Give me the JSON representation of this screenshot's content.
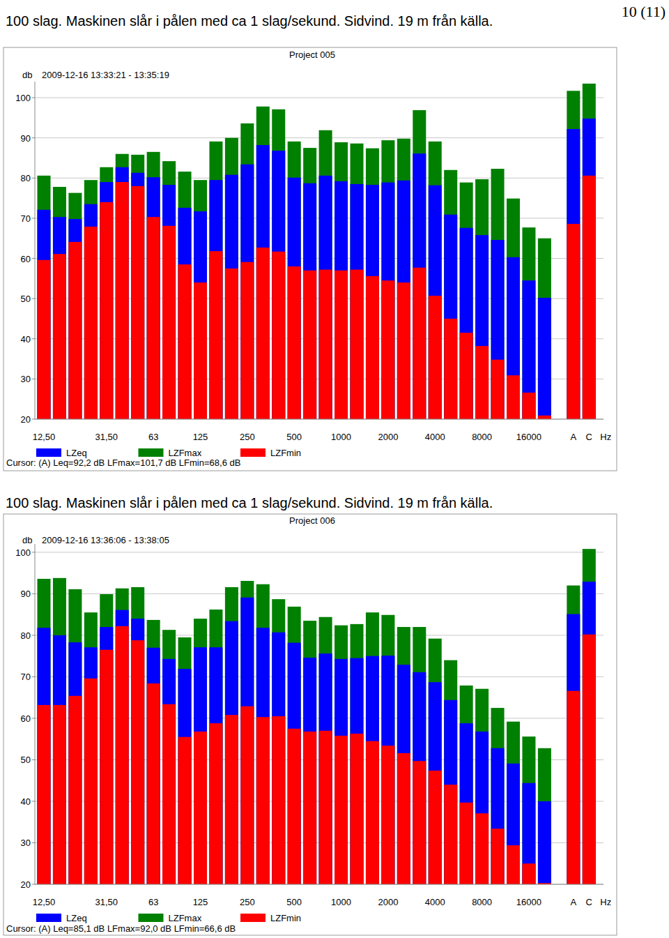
{
  "page": {
    "number": "10 (11)"
  },
  "chart_data": [
    {
      "type": "bar",
      "caption": "100 slag. Maskinen slår i pålen med ca 1 slag/sekund. Sidvind. 19 m från källa.",
      "title": "Project 005",
      "subtitle": "2009-12-16 13:33:21 - 13:35:19",
      "y_label": "db",
      "x_label": "Hz",
      "cursor": "Cursor: (A) Leq=92,2 dB LFmax=101,7 dB LFmin=68,6 dB",
      "categories": [
        "12,50",
        null,
        null,
        null,
        "31,50",
        null,
        null,
        "63",
        null,
        null,
        "125",
        null,
        null,
        "250",
        null,
        null,
        "500",
        null,
        null,
        "1000",
        null,
        null,
        "2000",
        null,
        null,
        "4000",
        null,
        null,
        "8000",
        null,
        null,
        "16000",
        null,
        "A",
        "C"
      ],
      "series": [
        {
          "name": "LZeq",
          "color": "#0000ff",
          "values": [
            72.1,
            70.3,
            69.8,
            73.5,
            79.0,
            82.7,
            81.3,
            80.2,
            78.3,
            72.6,
            71.7,
            79.5,
            80.8,
            83.4,
            88.2,
            86.8,
            80.1,
            78.7,
            80.6,
            79.2,
            78.5,
            78.3,
            78.9,
            79.4,
            86.1,
            78.2,
            70.9,
            67.6,
            65.8,
            64.6,
            60.3,
            54.5,
            50.2,
            92.2,
            94.8
          ]
        },
        {
          "name": "LZFmax",
          "color": "#008000",
          "values": [
            80.6,
            77.8,
            76.3,
            79.5,
            82.7,
            86.0,
            85.8,
            86.5,
            84.2,
            81.6,
            79.5,
            89.1,
            90.0,
            93.6,
            97.8,
            97.1,
            89.1,
            87.5,
            91.9,
            88.9,
            88.6,
            87.4,
            89.4,
            89.8,
            96.9,
            89.1,
            82.0,
            78.9,
            79.7,
            82.3,
            74.9,
            67.7,
            65.0,
            101.7,
            103.5
          ]
        },
        {
          "name": "LZFmin",
          "color": "#ff0000",
          "values": [
            59.6,
            61.1,
            64.1,
            67.9,
            74.0,
            79.0,
            78.0,
            70.3,
            68.1,
            58.5,
            54.0,
            61.8,
            57.5,
            59.1,
            62.7,
            61.7,
            58.0,
            57.0,
            57.2,
            57.0,
            57.2,
            55.6,
            54.5,
            54.0,
            57.7,
            50.7,
            45.0,
            41.5,
            38.2,
            34.8,
            30.9,
            26.6,
            20.9,
            68.6,
            80.6
          ]
        }
      ],
      "ylim": [
        20,
        104
      ],
      "yticks": [
        20,
        30,
        40,
        50,
        60,
        70,
        80,
        90,
        100
      ],
      "grid": true,
      "stacked": false,
      "legend": "bottom"
    },
    {
      "type": "bar",
      "caption": "100 slag. Maskinen slår i pålen med ca 1 slag/sekund. Sidvind. 19 m från källa.",
      "title": "Project 006",
      "subtitle": "2009-12-16 13:36:06 - 13:38:05",
      "y_label": "db",
      "x_label": "Hz",
      "cursor": "Cursor: (A) Leq=85,1 dB LFmax=92,0 dB LFmin=66,6 dB",
      "categories": [
        "12,50",
        null,
        null,
        null,
        "31,50",
        null,
        null,
        "63",
        null,
        null,
        "125",
        null,
        null,
        "250",
        null,
        null,
        "500",
        null,
        null,
        "1000",
        null,
        null,
        "2000",
        null,
        null,
        "4000",
        null,
        null,
        "8000",
        null,
        null,
        "16000",
        null,
        "A",
        "C"
      ],
      "series": [
        {
          "name": "LZeq",
          "color": "#0000ff",
          "values": [
            81.8,
            80.0,
            78.3,
            77.1,
            82.0,
            86.1,
            84.0,
            77.0,
            74.3,
            71.9,
            77.1,
            77.1,
            83.4,
            89.1,
            81.8,
            80.7,
            78.2,
            74.6,
            75.6,
            74.3,
            74.5,
            75.0,
            75.1,
            72.9,
            71.1,
            68.7,
            64.4,
            58.8,
            56.8,
            52.8,
            49.1,
            44.4,
            40.0,
            85.1,
            92.9
          ]
        },
        {
          "name": "LZFmax",
          "color": "#008000",
          "values": [
            93.6,
            93.8,
            91.1,
            85.5,
            89.9,
            91.3,
            91.6,
            83.7,
            81.3,
            79.5,
            84.0,
            86.2,
            91.6,
            93.1,
            92.3,
            88.7,
            86.9,
            83.5,
            84.4,
            82.4,
            82.7,
            85.5,
            84.9,
            82.0,
            82.0,
            79.2,
            74.0,
            67.9,
            67.1,
            62.5,
            59.2,
            55.6,
            52.8,
            92.0,
            100.8
          ]
        },
        {
          "name": "LZFmin",
          "color": "#ff0000",
          "values": [
            63.2,
            63.2,
            65.4,
            69.6,
            76.5,
            82.2,
            78.8,
            68.4,
            63.4,
            55.5,
            56.8,
            58.8,
            60.8,
            62.9,
            60.3,
            60.5,
            57.5,
            56.8,
            57.0,
            55.8,
            56.3,
            54.5,
            53.4,
            51.6,
            49.7,
            47.4,
            44.0,
            39.7,
            37.1,
            33.4,
            29.4,
            25.0,
            20.3,
            66.6,
            80.2
          ]
        }
      ],
      "ylim": [
        20,
        102
      ],
      "yticks": [
        20,
        30,
        40,
        50,
        60,
        70,
        80,
        90,
        100
      ],
      "grid": true,
      "stacked": false,
      "legend": "bottom"
    }
  ]
}
